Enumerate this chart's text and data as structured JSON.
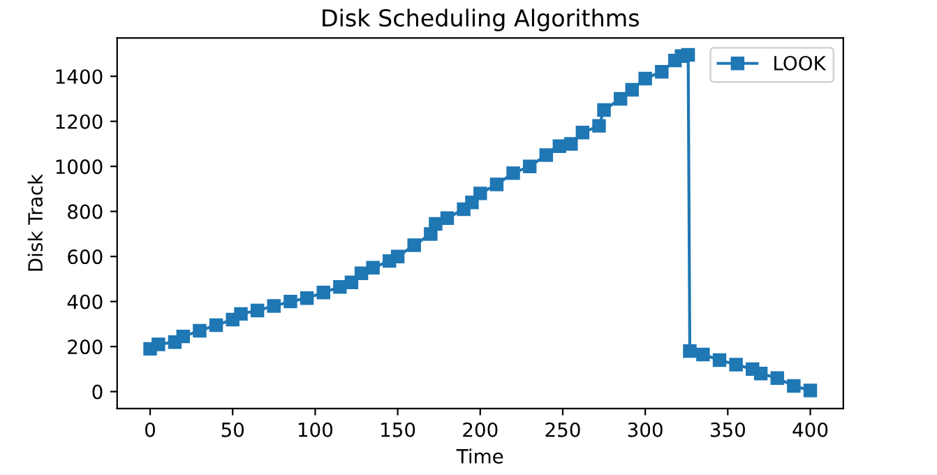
{
  "chart_data": {
    "type": "line",
    "title": "Disk Scheduling Algorithms",
    "xlabel": "Time",
    "ylabel": "Disk Track",
    "xlim": [
      -20,
      420
    ],
    "xticks": [
      0,
      50,
      100,
      150,
      200,
      250,
      300,
      350,
      400
    ],
    "ylim": [
      -75,
      1570
    ],
    "yticks": [
      0,
      200,
      400,
      600,
      800,
      1000,
      1200,
      1400
    ],
    "grid": false,
    "legend": "top right",
    "marker": "square",
    "line_style": "solid",
    "series": [
      {
        "name": "LOOK",
        "color": "#1f77b4",
        "x": [
          0,
          5,
          15,
          20,
          30,
          40,
          50,
          55,
          65,
          75,
          85,
          95,
          105,
          115,
          122,
          128,
          135,
          145,
          150,
          160,
          170,
          173,
          180,
          190,
          195,
          200,
          210,
          220,
          230,
          240,
          248,
          255,
          262,
          272,
          275,
          285,
          292,
          300,
          310,
          318,
          322,
          326,
          327,
          335,
          345,
          355,
          365,
          370,
          380,
          390,
          400
        ],
        "values": [
          190,
          210,
          220,
          245,
          270,
          295,
          320,
          345,
          360,
          380,
          400,
          415,
          440,
          465,
          485,
          525,
          550,
          580,
          600,
          650,
          700,
          745,
          770,
          810,
          840,
          880,
          920,
          970,
          1000,
          1050,
          1090,
          1100,
          1150,
          1180,
          1250,
          1300,
          1340,
          1390,
          1420,
          1470,
          1490,
          1495,
          180,
          165,
          140,
          120,
          100,
          80,
          60,
          25,
          5
        ]
      }
    ]
  }
}
